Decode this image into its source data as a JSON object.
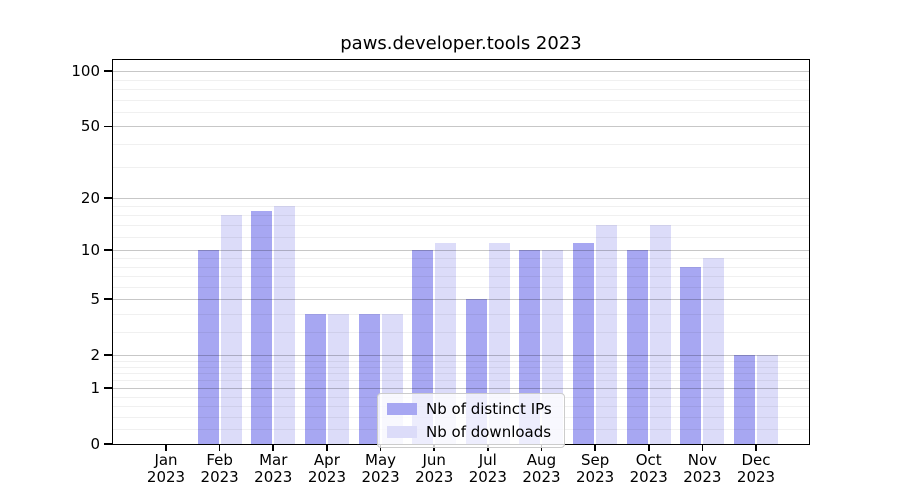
{
  "title": "paws.developer.tools 2023",
  "chart_data": {
    "type": "bar",
    "title": "paws.developer.tools 2023",
    "categories": [
      "Jan",
      "Feb",
      "Mar",
      "Apr",
      "May",
      "Jun",
      "Jul",
      "Aug",
      "Sep",
      "Oct",
      "Nov",
      "Dec"
    ],
    "x_tick_year": "2023",
    "series": [
      {
        "name": "Nb of distinct IPs",
        "color": "#a7a7f2",
        "values": [
          0,
          10,
          17,
          4,
          4,
          10,
          5,
          10,
          11,
          10,
          8,
          2
        ]
      },
      {
        "name": "Nb of downloads",
        "color": "#dcdcf9",
        "values": [
          0,
          16,
          18,
          4,
          4,
          11,
          11,
          10,
          14,
          14,
          9,
          2
        ]
      }
    ],
    "yscale": "symlog-log1p",
    "ylim": [
      0,
      115
    ],
    "y_major_ticks": [
      0,
      1,
      2,
      5,
      10,
      20,
      50,
      100
    ],
    "y_major_tick_labels": [
      "0",
      "1",
      "2",
      "5",
      "10",
      "20",
      "50",
      "100"
    ],
    "y_minor_ticks": [
      0.2,
      0.4,
      0.6,
      0.8,
      1.2,
      1.4,
      1.6,
      1.8,
      3,
      4,
      6,
      7,
      8,
      9,
      12,
      14,
      16,
      18,
      30,
      40,
      60,
      70,
      80,
      90
    ],
    "grid": "on",
    "legend_position": "lower center"
  }
}
